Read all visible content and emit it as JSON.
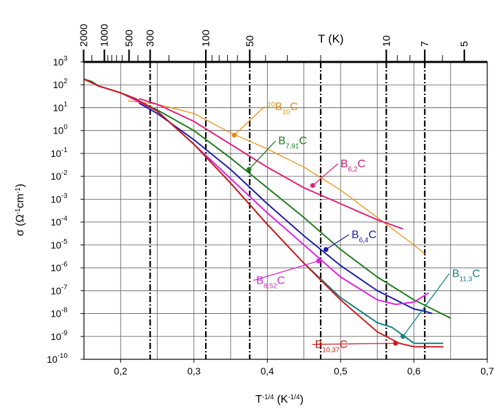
{
  "chart_data": {
    "type": "line",
    "xlabel": {
      "base": "T",
      "exp": "-1/4",
      "units": " (K",
      "units_exp": "-1/4",
      "close": ")"
    },
    "ylabel": {
      "sym": "σ (Ω",
      "e1": "-1",
      "mid": "cm",
      "e2": "-1",
      "close": ")"
    },
    "top_axis_label": "T (K)",
    "xlim": [
      0.15,
      0.7
    ],
    "ylim_log10": [
      -10,
      3
    ],
    "x_ticks": [
      {
        "value": 0.2,
        "label": "0,2"
      },
      {
        "value": 0.3,
        "label": "0,3"
      },
      {
        "value": 0.4,
        "label": "0,4"
      },
      {
        "value": 0.5,
        "label": "0,5"
      },
      {
        "value": 0.6,
        "label": "0,6"
      },
      {
        "value": 0.7,
        "label": "0,7"
      }
    ],
    "y_ticks": [
      {
        "exp": 3,
        "label": "3"
      },
      {
        "exp": 2,
        "label": "2"
      },
      {
        "exp": 1,
        "label": "1"
      },
      {
        "exp": 0,
        "label": "0"
      },
      {
        "exp": -1,
        "label": "-1"
      },
      {
        "exp": -2,
        "label": "-2"
      },
      {
        "exp": -3,
        "label": "-3"
      },
      {
        "exp": -4,
        "label": "-4"
      },
      {
        "exp": -5,
        "label": "-5"
      },
      {
        "exp": -6,
        "label": "-6"
      },
      {
        "exp": -7,
        "label": "-7"
      },
      {
        "exp": -8,
        "label": "-8"
      },
      {
        "exp": -9,
        "label": "-9"
      },
      {
        "exp": -10,
        "label": "-10"
      }
    ],
    "y_tick_base": "10",
    "top_labeled_ticks": [
      {
        "T": 2000,
        "label": "2000"
      },
      {
        "T": 1000,
        "label": "1000"
      },
      {
        "T": 500,
        "label": "500"
      },
      {
        "T": 300,
        "label": "300"
      },
      {
        "T": 100,
        "label": "100"
      },
      {
        "T": 50,
        "label": "50"
      },
      {
        "T": 10,
        "label": "10"
      },
      {
        "T": 7,
        "label": "7"
      },
      {
        "T": 5,
        "label": "5"
      }
    ],
    "top_minor_ticks_T": [
      1500,
      900,
      800,
      700,
      600,
      400,
      200,
      90,
      80,
      70,
      60,
      40,
      30,
      20,
      9,
      8,
      6
    ],
    "dashdot_lines_T": [
      300,
      100,
      50,
      20,
      10,
      7
    ],
    "series": [
      {
        "name": "10B10C",
        "label_parts": [
          {
            "t": "10",
            "sup": true
          },
          {
            "t": "B"
          },
          {
            "t": "10",
            "sub": true
          },
          {
            "t": "C"
          }
        ],
        "color": "#e68a00",
        "thin": true,
        "x": [
          0.21,
          0.25,
          0.3,
          0.35,
          0.4,
          0.45,
          0.5,
          0.55,
          0.6,
          0.615
        ],
        "y": [
          1.3,
          1.15,
          0.75,
          -0.1,
          -0.8,
          -1.6,
          -2.6,
          -3.8,
          -5.0,
          -5.4
        ],
        "marker": [
          0.355,
          -0.2
        ],
        "label_at": [
          0.4,
          0.9
        ],
        "label_color": "#d98f1a"
      },
      {
        "name": "B7.91C",
        "label_parts": [
          {
            "t": "B"
          },
          {
            "t": "7,91",
            "sub": true
          },
          {
            "t": "C"
          }
        ],
        "color": "#1f7a1f",
        "x": [
          0.15,
          0.16,
          0.17,
          0.18,
          0.2,
          0.22,
          0.25,
          0.3,
          0.35,
          0.4,
          0.45,
          0.5,
          0.55,
          0.6,
          0.625,
          0.65
        ],
        "y": [
          2.25,
          2.15,
          1.95,
          1.85,
          1.65,
          1.35,
          0.9,
          0.0,
          -1.2,
          -2.5,
          -3.8,
          -5.2,
          -6.4,
          -7.4,
          -7.8,
          -8.2
        ],
        "marker": [
          0.375,
          -1.7
        ],
        "label_at": [
          0.415,
          -0.6
        ],
        "label_color": "#1f7a1f"
      },
      {
        "name": "B6.2C",
        "label_parts": [
          {
            "t": "B"
          },
          {
            "t": "6,2",
            "sub": true
          },
          {
            "t": "C"
          }
        ],
        "color": "#e0207a",
        "x": [
          0.225,
          0.25,
          0.3,
          0.35,
          0.4,
          0.45,
          0.5,
          0.55,
          0.585
        ],
        "y": [
          1.4,
          1.15,
          0.4,
          -0.6,
          -1.6,
          -2.5,
          -3.2,
          -3.9,
          -4.3
        ],
        "marker": [
          0.462,
          -2.4
        ],
        "label_at": [
          0.5,
          -1.6
        ],
        "label_color": "#c2186e"
      },
      {
        "name": "B6.4C",
        "label_parts": [
          {
            "t": "B"
          },
          {
            "t": "6,4",
            "sub": true
          },
          {
            "t": "C"
          }
        ],
        "color": "#1a1aaa",
        "x": [
          0.225,
          0.25,
          0.3,
          0.35,
          0.4,
          0.45,
          0.5,
          0.55,
          0.6,
          0.615,
          0.625
        ],
        "y": [
          1.2,
          0.75,
          -0.4,
          -1.7,
          -3.2,
          -4.6,
          -5.9,
          -7.0,
          -7.8,
          -7.9,
          -8.0
        ],
        "marker": [
          0.48,
          -5.2
        ],
        "label_at": [
          0.515,
          -4.7
        ],
        "label_color": "#1a1aaa"
      },
      {
        "name": "B8.52C",
        "label_parts": [
          {
            "t": "B"
          },
          {
            "t": "8,52",
            "sub": true
          },
          {
            "t": "C"
          }
        ],
        "color": "#e020e0",
        "x": [
          0.15,
          0.17,
          0.2,
          0.25,
          0.3,
          0.35,
          0.4,
          0.45,
          0.5,
          0.55,
          0.575,
          0.6,
          0.62
        ],
        "y": [
          2.25,
          1.95,
          1.65,
          0.85,
          -0.6,
          -2.1,
          -3.6,
          -5.0,
          -6.4,
          -7.4,
          -7.6,
          -7.5,
          -7.1
        ],
        "marker": [
          0.47,
          -5.7
        ],
        "label_at": [
          0.385,
          -6.7
        ],
        "label_color": "#cc33cc"
      },
      {
        "name": "B11.3C",
        "label_parts": [
          {
            "t": "B"
          },
          {
            "t": "11,3",
            "sub": true
          },
          {
            "t": "C"
          }
        ],
        "color": "#138080",
        "x": [
          0.15,
          0.16,
          0.17,
          0.18,
          0.2,
          0.22,
          0.25,
          0.3,
          0.35,
          0.4,
          0.45,
          0.5,
          0.55,
          0.57,
          0.585,
          0.6,
          0.64
        ],
        "y": [
          2.25,
          2.1,
          1.95,
          1.85,
          1.65,
          1.4,
          0.85,
          -0.6,
          -2.3,
          -4.1,
          -5.8,
          -7.3,
          -8.4,
          -8.6,
          -8.95,
          -9.3,
          -9.3
        ],
        "marker": [
          0.585,
          -9.0
        ],
        "label_at": [
          0.652,
          -6.4
        ],
        "label_color": "#138080"
      },
      {
        "name": "B10.37C",
        "label_parts": [
          {
            "t": "B"
          },
          {
            "t": "10,37",
            "sub": true
          },
          {
            "t": "C"
          }
        ],
        "color": "#cc1a1a",
        "x": [
          0.15,
          0.16,
          0.17,
          0.18,
          0.2,
          0.22,
          0.25,
          0.3,
          0.35,
          0.4,
          0.45,
          0.5,
          0.55,
          0.58,
          0.6,
          0.64
        ],
        "y": [
          2.25,
          2.1,
          1.95,
          1.85,
          1.65,
          1.4,
          0.85,
          -0.6,
          -2.3,
          -4.1,
          -5.8,
          -7.4,
          -8.8,
          -9.3,
          -9.45,
          -9.45
        ],
        "marker": [
          0.575,
          -9.3
        ],
        "label_at": [
          0.465,
          -9.5
        ],
        "label_color": "#cc1a1a"
      }
    ],
    "grid": true,
    "legend": "inline labels"
  }
}
